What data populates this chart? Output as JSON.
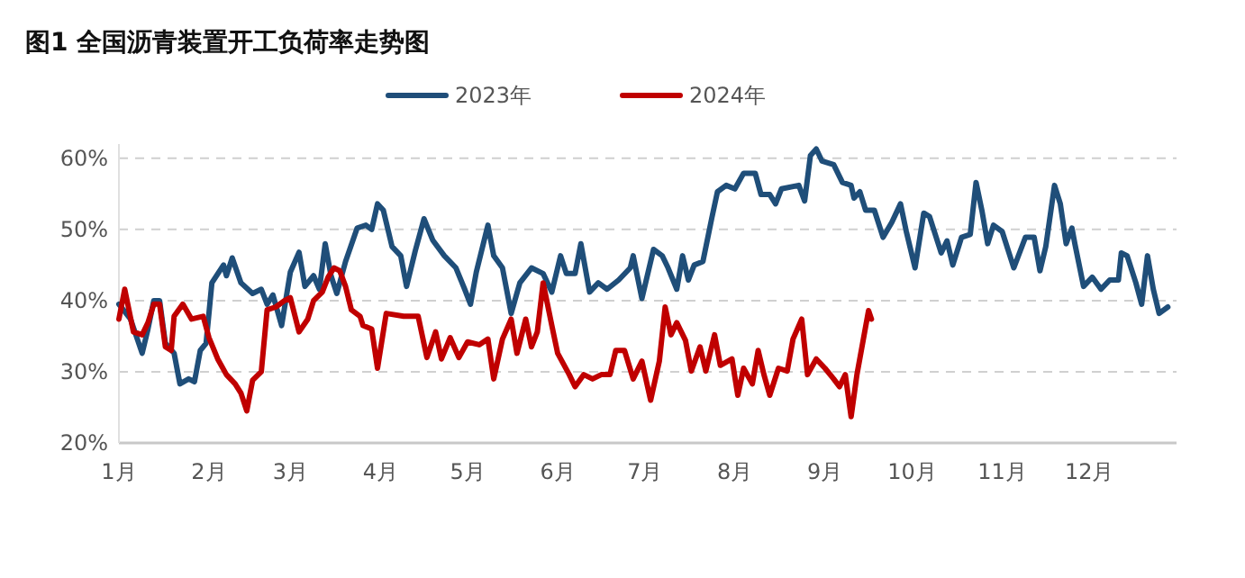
{
  "chart_data": {
    "type": "line",
    "title": "图1  全国沥青装置开工负荷率走势图",
    "xlim": [
      "--01-01",
      "--12-31"
    ],
    "xticks": [
      {
        "value": "--01-01",
        "label": "1月"
      },
      {
        "value": "--02-01",
        "label": "2月"
      },
      {
        "value": "--03-01",
        "label": "3月"
      },
      {
        "value": "--04-01",
        "label": "4月"
      },
      {
        "value": "--05-01",
        "label": "5月"
      },
      {
        "value": "--06-01",
        "label": "6月"
      },
      {
        "value": "--07-01",
        "label": "7月"
      },
      {
        "value": "--08-01",
        "label": "8月"
      },
      {
        "value": "--09-01",
        "label": "9月"
      },
      {
        "value": "--10-01",
        "label": "10月"
      },
      {
        "value": "--11-01",
        "label": "11月"
      },
      {
        "value": "--12-01",
        "label": "12月"
      }
    ],
    "ylim": [
      20,
      62
    ],
    "yticks": [
      {
        "value": 20,
        "label": "20%"
      },
      {
        "value": 30,
        "label": "30%"
      },
      {
        "value": 40,
        "label": "40%"
      },
      {
        "value": 50,
        "label": "50%"
      },
      {
        "value": 60,
        "label": "60%"
      }
    ],
    "grid": "y",
    "legend": "top",
    "marker": "none",
    "line_style": "solid",
    "series": [
      {
        "name": "2023年",
        "color": "#1f4e79",
        "x": [
          "--01-01",
          "--01-05",
          "--01-09",
          "--01-11",
          "--01-13",
          "--01-15",
          "--01-17",
          "--01-20",
          "--01-22",
          "--01-25",
          "--01-27",
          "--01-29",
          "--01-31",
          "--02-02",
          "--02-06",
          "--02-07",
          "--02-09",
          "--02-12",
          "--02-16",
          "--02-19",
          "--02-21",
          "--02-23",
          "--02-26",
          "--03-01",
          "--03-04",
          "--03-06",
          "--03-09",
          "--03-11",
          "--03-13",
          "--03-15",
          "--03-17",
          "--03-20",
          "--03-24",
          "--03-27",
          "--03-29",
          "--03-31",
          "--04-02",
          "--04-05",
          "--04-08",
          "--04-10",
          "--04-13",
          "--04-16",
          "--04-19",
          "--04-23",
          "--04-27",
          "--04-30",
          "--05-02",
          "--05-04",
          "--05-08",
          "--05-10",
          "--05-13",
          "--05-16",
          "--05-19",
          "--05-23",
          "--05-27",
          "--05-30",
          "--06-02",
          "--06-04",
          "--06-07",
          "--06-09",
          "--06-12",
          "--06-15",
          "--06-18",
          "--06-22",
          "--06-26",
          "--06-27",
          "--06-30",
          "--07-04",
          "--07-07",
          "--07-09",
          "--07-12",
          "--07-14",
          "--07-16",
          "--07-18",
          "--07-21",
          "--07-24",
          "--07-26",
          "--07-29",
          "--08-01",
          "--08-04",
          "--08-08",
          "--08-10",
          "--08-13",
          "--08-15",
          "--08-17",
          "--08-23",
          "--08-25",
          "--08-27",
          "--08-29",
          "--08-31",
          "--09-04",
          "--09-07",
          "--09-10",
          "--09-11",
          "--09-13",
          "--09-15",
          "--09-18",
          "--09-21",
          "--09-24",
          "--09-27",
          "--09-29",
          "--10-02",
          "--10-05",
          "--10-07",
          "--10-11",
          "--10-13",
          "--10-15",
          "--10-18",
          "--10-21",
          "--10-23",
          "--10-25",
          "--10-27",
          "--10-29",
          "--11-01",
          "--11-05",
          "--11-09",
          "--11-12",
          "--11-14",
          "--11-16",
          "--11-19",
          "--11-21",
          "--11-23",
          "--11-25",
          "--11-26",
          "--11-29",
          "--12-02",
          "--12-05",
          "--12-08",
          "--12-11",
          "--12-12",
          "--12-14",
          "--12-17",
          "--12-19",
          "--12-21",
          "--12-23",
          "--12-25",
          "--12-28"
        ],
        "values": [
          39.5,
          37.4,
          32.6,
          36,
          40,
          40,
          34,
          32.6,
          28.3,
          29,
          28.6,
          33,
          34,
          42.5,
          45,
          43.5,
          46,
          42.5,
          41,
          41.6,
          39.5,
          40.8,
          36.5,
          44,
          46.8,
          42,
          43.5,
          41.6,
          48,
          43.5,
          41,
          45.5,
          50.2,
          50.6,
          50,
          53.6,
          52.7,
          47.6,
          46.3,
          42,
          47,
          51.5,
          48.5,
          46.3,
          44.6,
          41.6,
          39.5,
          44,
          50.6,
          46.3,
          44.6,
          38.2,
          42.5,
          44.6,
          43.8,
          41.2,
          46.3,
          43.8,
          43.8,
          48,
          41.2,
          42.5,
          41.6,
          42.9,
          44.6,
          46.3,
          40.3,
          47.2,
          46.3,
          44.6,
          41.6,
          46.3,
          42.9,
          45,
          45.5,
          51.5,
          55.3,
          56.2,
          55.7,
          57.9,
          57.9,
          54.9,
          54.9,
          53.6,
          55.7,
          56.2,
          54,
          60.4,
          61.3,
          59.6,
          59.1,
          56.6,
          56.2,
          54.4,
          55.3,
          52.7,
          52.7,
          48.9,
          51,
          53.6,
          49.7,
          44.6,
          52.3,
          51.8,
          46.7,
          48.4,
          45,
          48.9,
          49.3,
          56.6,
          52.7,
          48,
          50.6,
          49.7,
          44.6,
          48.9,
          48.9,
          44.2,
          47.6,
          56.2,
          53.6,
          48,
          50.2,
          48,
          42,
          43.3,
          41.6,
          42.9,
          42.9,
          46.7,
          46.3,
          42.5,
          39.5,
          46.3,
          41.6,
          38.2,
          39.1
        ]
      },
      {
        "name": "2024年",
        "color": "#c00000",
        "x": [
          "--01-01",
          "--01-03",
          "--01-06",
          "--01-09",
          "--01-11",
          "--01-13",
          "--01-15",
          "--01-17",
          "--01-19",
          "--01-20",
          "--01-23",
          "--01-26",
          "--01-30",
          "--02-01",
          "--02-04",
          "--02-07",
          "--02-10",
          "--02-12",
          "--02-14",
          "--02-16",
          "--02-19",
          "--02-21",
          "--02-24",
          "--02-27",
          "--03-01",
          "--03-04",
          "--03-07",
          "--03-09",
          "--03-12",
          "--03-14",
          "--03-16",
          "--03-18",
          "--03-20",
          "--03-22",
          "--03-25",
          "--03-26",
          "--03-29",
          "--03-31",
          "--04-03",
          "--04-09",
          "--04-14",
          "--04-17",
          "--04-20",
          "--04-22",
          "--04-25",
          "--04-28",
          "--05-01",
          "--05-05",
          "--05-08",
          "--05-10",
          "--05-13",
          "--05-16",
          "--05-18",
          "--05-21",
          "--05-23",
          "--05-25",
          "--05-27",
          "--05-30",
          "--06-01",
          "--06-05",
          "--06-07",
          "--06-10",
          "--06-13",
          "--06-16",
          "--06-19",
          "--06-21",
          "--06-24",
          "--06-27",
          "--06-30",
          "--07-03",
          "--07-06",
          "--07-08",
          "--07-10",
          "--07-12",
          "--07-15",
          "--07-17",
          "--07-20",
          "--07-22",
          "--07-25",
          "--07-27",
          "--07-31",
          "--08-02",
          "--08-04",
          "--08-07",
          "--08-09",
          "--08-11",
          "--08-13",
          "--08-16",
          "--08-19",
          "--08-21",
          "--08-24",
          "--08-26",
          "--08-29",
          "--09-01",
          "--09-04",
          "--09-06",
          "--09-08",
          "--09-10",
          "--09-12",
          "--09-16",
          "--09-17"
        ],
        "values": [
          37.4,
          41.6,
          35.6,
          35.2,
          36.9,
          39.5,
          39.5,
          33.5,
          33,
          37.8,
          39.5,
          37.4,
          37.8,
          34.8,
          31.8,
          29.6,
          28.3,
          27,
          24.5,
          28.8,
          30,
          38.7,
          39.1,
          40,
          40.4,
          35.6,
          37.4,
          40,
          41.2,
          43.3,
          44.6,
          44.2,
          42,
          38.7,
          37.8,
          36.5,
          36,
          30.5,
          38.2,
          37.8,
          37.8,
          32,
          35.6,
          31.8,
          34.8,
          32,
          34.2,
          33.8,
          34.6,
          29,
          34.6,
          37.4,
          32.6,
          37.4,
          33.5,
          35.6,
          42.5,
          36.5,
          32.6,
          29.6,
          27.9,
          29.6,
          29,
          29.6,
          29.6,
          33,
          33,
          29,
          31.5,
          26,
          31.5,
          39.1,
          35.2,
          36.9,
          34.4,
          30.1,
          33.5,
          30.1,
          35.2,
          30.9,
          31.8,
          26.7,
          30.5,
          28.3,
          33,
          29.6,
          26.7,
          30.5,
          30.1,
          34.6,
          37.4,
          29.6,
          31.8,
          30.5,
          29,
          27.9,
          29.6,
          23.7,
          29.6,
          38.6,
          37.4
        ]
      }
    ]
  }
}
